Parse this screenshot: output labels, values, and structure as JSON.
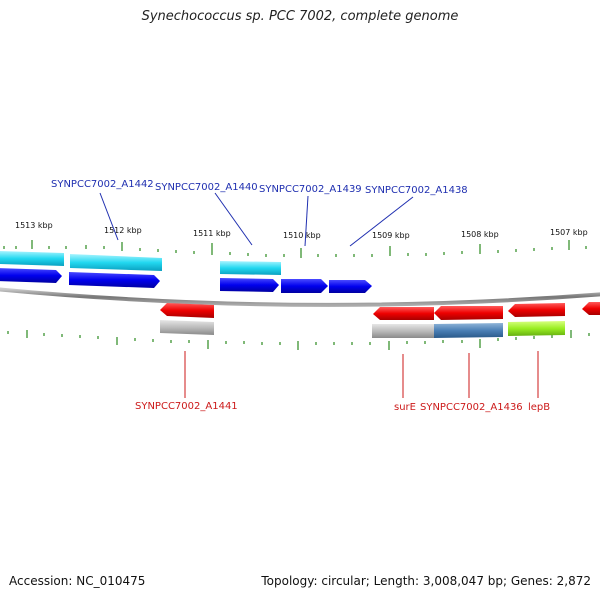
{
  "title": "Synechococcus sp. PCC 7002, complete genome",
  "footer": {
    "accession": "Accession: NC_010475",
    "summary": "Topology: circular; Length: 3,008,047 bp; Genes: 2,872"
  },
  "colors": {
    "forward_label": "#1f2fb0",
    "reverse_label": "#cc1a1a",
    "tick": "#2b8a1f",
    "backbone": "#888888"
  },
  "ticks": [
    {
      "kbp": 1513,
      "label": "1513 kbp"
    },
    {
      "kbp": 1512,
      "label": "1512 kbp"
    },
    {
      "kbp": 1511,
      "label": "1511 kbp"
    },
    {
      "kbp": 1510,
      "label": "1510 kbp"
    },
    {
      "kbp": 1509,
      "label": "1509 kbp"
    },
    {
      "kbp": 1508,
      "label": "1508 kbp"
    },
    {
      "kbp": 1507,
      "label": "1507 kbp"
    }
  ],
  "forward_labels": [
    {
      "id": "a1442",
      "text": "SYNPCC7002_A1442"
    },
    {
      "id": "a1440",
      "text": "SYNPCC7002_A1440"
    },
    {
      "id": "a1439",
      "text": "SYNPCC7002_A1439"
    },
    {
      "id": "a1438",
      "text": "SYNPCC7002_A1438"
    }
  ],
  "reverse_labels": [
    {
      "id": "a1441",
      "text": "SYNPCC7002_A1441"
    },
    {
      "id": "sure",
      "text": "surE"
    },
    {
      "id": "a1436",
      "text": "SYNPCC7002_A1436"
    },
    {
      "id": "lepb",
      "text": "lepB"
    }
  ]
}
